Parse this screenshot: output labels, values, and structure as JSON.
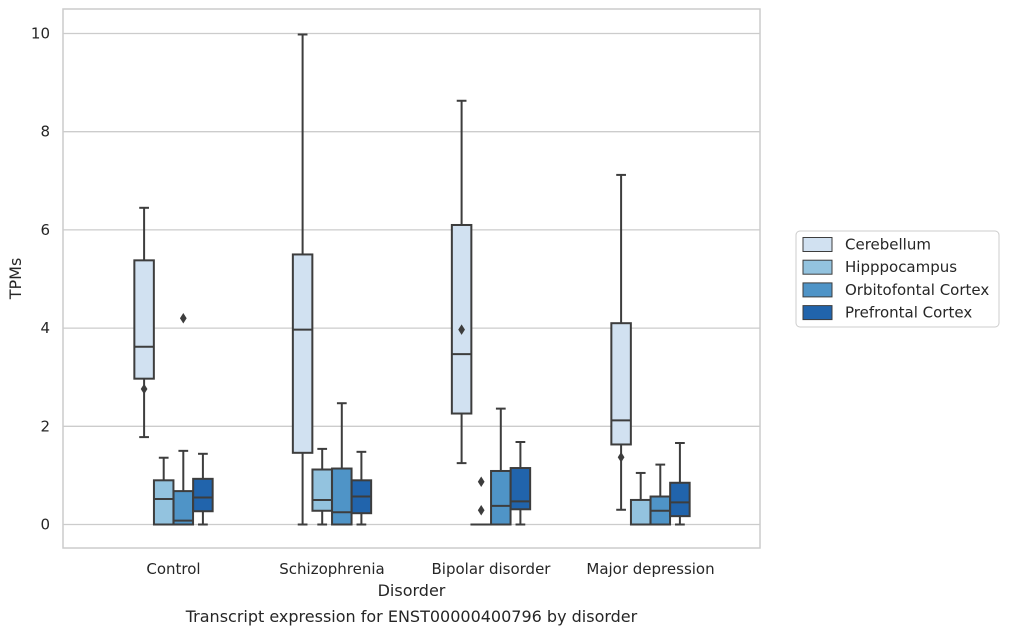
{
  "caption": "Transcript expression for ENST00000400796 by disorder",
  "chart_data": {
    "type": "box",
    "xlabel": "Disorder",
    "ylabel": "TPMs",
    "ylim": [
      -0.48,
      10.5
    ],
    "yticks": [
      0,
      2,
      4,
      6,
      8,
      10
    ],
    "grid": "horizontal",
    "legend_position": "right",
    "categories": [
      "Control",
      "Schizophrenia",
      "Bipolar disorder",
      "Major depression"
    ],
    "colors": {
      "Cerebellum": "#d1e1f1",
      "Hipppocampus": "#93c3df",
      "Orbitofontal Cortex": "#4f94c7",
      "Prefrontal Cortex": "#2164ac",
      "box_edge": "#3d3d3d",
      "grid": "#cccccc",
      "frame": "#cccccc"
    },
    "series": [
      {
        "name": "Cerebellum",
        "boxes": [
          {
            "whislo": 1.78,
            "q1": 2.97,
            "med": 3.62,
            "q3": 5.38,
            "whishi": 6.45,
            "fliers": [
              2.76
            ]
          },
          {
            "whislo": 0.0,
            "q1": 1.46,
            "med": 3.97,
            "q3": 5.5,
            "whishi": 9.98,
            "fliers": []
          },
          {
            "whislo": 1.25,
            "q1": 2.26,
            "med": 3.47,
            "q3": 6.1,
            "whishi": 8.63,
            "fliers": [
              3.97
            ]
          },
          {
            "whislo": 0.3,
            "q1": 1.63,
            "med": 2.12,
            "q3": 4.1,
            "whishi": 7.12,
            "fliers": [
              1.37
            ]
          }
        ]
      },
      {
        "name": "Hipppocampus",
        "boxes": [
          {
            "whislo": 0.0,
            "q1": 0.0,
            "med": 0.52,
            "q3": 0.9,
            "whishi": 1.36,
            "fliers": []
          },
          {
            "whislo": 0.0,
            "q1": 0.28,
            "med": 0.5,
            "q3": 1.12,
            "whishi": 1.54,
            "fliers": []
          },
          {
            "whislo": 0.0,
            "q1": 0.0,
            "med": 0.0,
            "q3": 0.0,
            "whishi": 0.0,
            "fliers": [
              0.87,
              0.29
            ]
          },
          {
            "whislo": 0.0,
            "q1": 0.0,
            "med": 0.0,
            "q3": 0.5,
            "whishi": 1.05,
            "fliers": []
          }
        ]
      },
      {
        "name": "Orbitofontal Cortex",
        "boxes": [
          {
            "whislo": 0.0,
            "q1": 0.0,
            "med": 0.08,
            "q3": 0.68,
            "whishi": 1.5,
            "fliers": [
              4.2
            ]
          },
          {
            "whislo": 0.0,
            "q1": 0.0,
            "med": 0.25,
            "q3": 1.14,
            "whishi": 2.47,
            "fliers": []
          },
          {
            "whislo": 0.0,
            "q1": 0.0,
            "med": 0.38,
            "q3": 1.09,
            "whishi": 2.36,
            "fliers": []
          },
          {
            "whislo": 0.0,
            "q1": 0.0,
            "med": 0.28,
            "q3": 0.57,
            "whishi": 1.22,
            "fliers": []
          }
        ]
      },
      {
        "name": "Prefrontal Cortex",
        "boxes": [
          {
            "whislo": 0.0,
            "q1": 0.27,
            "med": 0.55,
            "q3": 0.93,
            "whishi": 1.44,
            "fliers": []
          },
          {
            "whislo": 0.0,
            "q1": 0.23,
            "med": 0.57,
            "q3": 0.9,
            "whishi": 1.48,
            "fliers": []
          },
          {
            "whislo": 0.0,
            "q1": 0.31,
            "med": 0.47,
            "q3": 1.15,
            "whishi": 1.68,
            "fliers": []
          },
          {
            "whislo": 0.0,
            "q1": 0.17,
            "med": 0.45,
            "q3": 0.85,
            "whishi": 1.66,
            "fliers": []
          }
        ]
      }
    ]
  }
}
